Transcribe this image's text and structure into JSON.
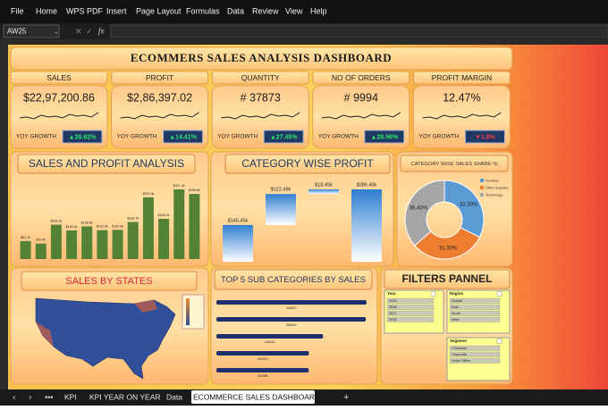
{
  "menu": [
    "File",
    "Home",
    "WPS PDF",
    "Insert",
    "Page Layout",
    "Formulas",
    "Data",
    "Review",
    "View",
    "Help"
  ],
  "name_box": "AW25",
  "title": "ECOMMERS SALES ANALYSIS DASHBOARD",
  "kpis": [
    {
      "label": "SALES",
      "value": "$22,97,200.86",
      "growth_label": "YOY GROWTH",
      "growth": "▲20.62%",
      "growth_color": "#2ee86a"
    },
    {
      "label": "PROFIT",
      "value": "$2,86,397.02",
      "growth_label": "YOY GROWTH",
      "growth": "▲14.41%",
      "growth_color": "#2ee86a"
    },
    {
      "label": "QUANTITY",
      "value": "# 37873",
      "growth_label": "YOY GROWTH",
      "growth": "▲27.45%",
      "growth_color": "#2ee86a"
    },
    {
      "label": "NO OF ORDERS",
      "value": "# 9994",
      "growth_label": "YOY GROWTH",
      "growth": "▲28.56%",
      "growth_color": "#2ee86a"
    },
    {
      "label": "PROFIT MARGIN",
      "value": "12.47%",
      "growth_label": "YOY GROWTH",
      "growth": "▼1.8%",
      "growth_color": "#ff3b3b"
    }
  ],
  "chart_data": [
    {
      "type": "bar",
      "title": "SALES AND PROFIT ANALYSIS",
      "color": "#548235",
      "values": [
        81.7,
        70.4,
        156.3,
        130.2,
        148.6,
        131.5,
        132.9,
        168.7,
        281.3,
        183.2,
        317.4,
        296.6
      ],
      "value_labels": [
        "$81.7k",
        "$70.4k",
        "$156.3k",
        "$130.2k",
        "$148.6k",
        "$131.5k",
        "$132.9k",
        "$168.7k",
        "$281.3k",
        "$183.2k",
        "$317.4k",
        "$296.6k"
      ]
    },
    {
      "type": "waterfall",
      "title": "CATEGORY WISE PROFIT",
      "color": "#2f7fd1",
      "values": [
        145.45,
        122.49,
        18.45,
        286.4
      ],
      "value_labels": [
        "$145.45k",
        "$122.49k",
        "$18.45k",
        "$286.40k"
      ],
      "measures": [
        "relative",
        "relative",
        "relative",
        "total"
      ]
    },
    {
      "type": "pie",
      "title": "CATEGORY WISE SALES SHARE %",
      "categories": [
        "Furniture",
        "Office Supplies",
        "Technology"
      ],
      "values": [
        32.3,
        31.3,
        36.4
      ],
      "value_labels": [
        "32.30%",
        "31.30%",
        "36.40%"
      ],
      "colors": [
        "#5b9bd5",
        "#ed7d31",
        "#a5a5a5"
      ]
    },
    {
      "type": "map",
      "title": "SALES BY STATES",
      "color": "#2f4f9a"
    },
    {
      "type": "hbar",
      "title": "TOP 5 SUB CATEGORIES BY SALES",
      "color": "#1f2f6b",
      "values": [
        330007,
        328449,
        234410,
        203413,
        202988
      ]
    }
  ],
  "filters": {
    "title": "FILTERS PANNEL",
    "slicers": [
      {
        "title": "Year",
        "items": [
          "2015",
          "2016",
          "2017",
          "2018"
        ]
      },
      {
        "title": "Region",
        "items": [
          "Central",
          "East",
          "South",
          "West"
        ]
      },
      {
        "title": "Segment",
        "items": [
          "Consumer",
          "Corporate",
          "Home Office"
        ]
      }
    ]
  },
  "sheet_tabs": [
    "KPI",
    "KPI YEAR ON YEAR",
    "Data",
    "ECOMMERCE SALES DASHBOARD"
  ]
}
